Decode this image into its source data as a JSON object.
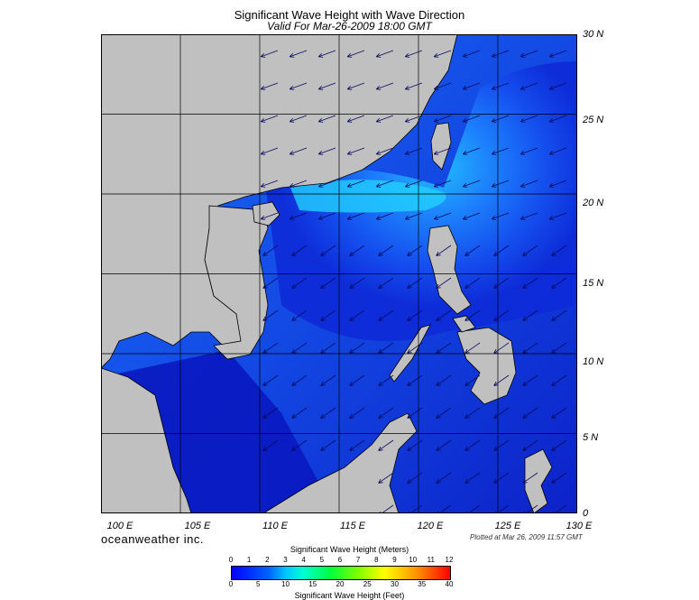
{
  "title": "Significant Wave Height with Wave Direction",
  "subtitle": "Valid For Mar-26-2009 18:00 GMT",
  "lat_labels": [
    "30 N",
    "25 N",
    "20 N",
    "15 N",
    "10 N",
    "5 N",
    "0"
  ],
  "lon_labels": [
    "100 E",
    "105 E",
    "110 E",
    "115 E",
    "120 E",
    "125 E",
    "130 E"
  ],
  "brand": "oceanweather inc.",
  "plotted": "Plotted at Mar 26, 2009 11:57 GMT",
  "colorbar": {
    "title_top": "Significant Wave Height (Meters)",
    "title_bottom": "Significant Wave Height (Feet)",
    "meters": [
      "0",
      "1",
      "2",
      "3",
      "4",
      "5",
      "6",
      "7",
      "8",
      "9",
      "10",
      "11",
      "12"
    ],
    "feet": [
      "0",
      "5",
      "10",
      "15",
      "20",
      "25",
      "30",
      "35",
      "40"
    ]
  },
  "colors": {
    "land": "#c0c0c0",
    "deep": "#0a14c8",
    "mid": "#1450ff",
    "light": "#1ea0ff",
    "arrow": "#0a0a60"
  }
}
